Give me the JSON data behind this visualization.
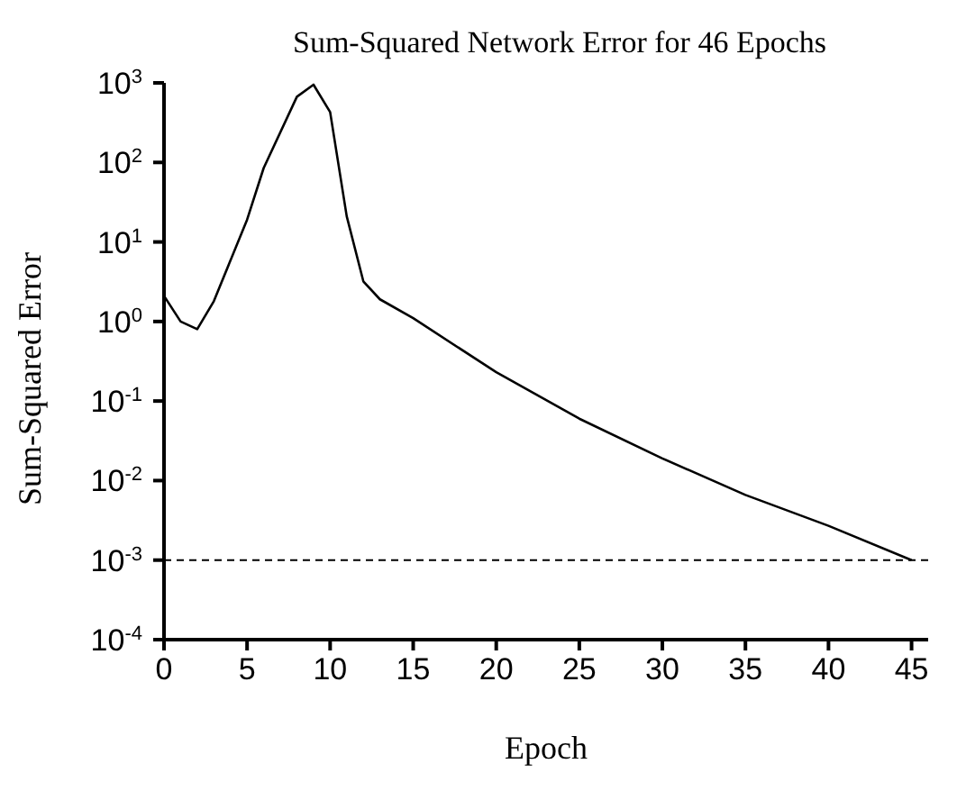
{
  "chart_data": {
    "type": "line",
    "title": "Sum-Squared Network Error for 46 Epochs",
    "xlabel": "Epoch",
    "ylabel": "Sum-Squared Error",
    "log": "y",
    "grid": false,
    "marker": "none",
    "line_style": "solid",
    "x": [
      0,
      1,
      2,
      3,
      5,
      6,
      8,
      9,
      10,
      11,
      12,
      13,
      15,
      20,
      25,
      30,
      35,
      40,
      45
    ],
    "series": [
      {
        "color": "#000000",
        "values": [
          2.1,
          1,
          0.8,
          1.8,
          19,
          85,
          670,
          950,
          430,
          21,
          3.2,
          1.9,
          1.1,
          0.23,
          0.06,
          0.019,
          0.0066,
          0.0027,
          0.001
        ]
      }
    ],
    "xlim": [
      0,
      46
    ],
    "xticks": [
      0,
      5,
      10,
      15,
      20,
      25,
      30,
      35,
      40,
      45
    ],
    "ylim": [
      0.0001,
      1000
    ],
    "yticks": [
      {
        "value": 0.0001,
        "label": "10$^{-4}$"
      },
      {
        "value": 0.001,
        "label": "10$^{-3}$"
      },
      {
        "value": 0.01,
        "label": "10$^{-2}$"
      },
      {
        "value": 0.1,
        "label": "10$^{-1}$"
      },
      {
        "value": 1,
        "label": "10$^{0}$"
      },
      {
        "value": 10,
        "label": "10$^{1}$"
      },
      {
        "value": 100,
        "label": "10$^{2}$"
      },
      {
        "value": 1000,
        "label": "10$^{3}$"
      }
    ],
    "ref_lines": [
      {
        "axis": "y",
        "value": 0.001,
        "line_style": "dashed",
        "color": "#000000"
      }
    ]
  }
}
